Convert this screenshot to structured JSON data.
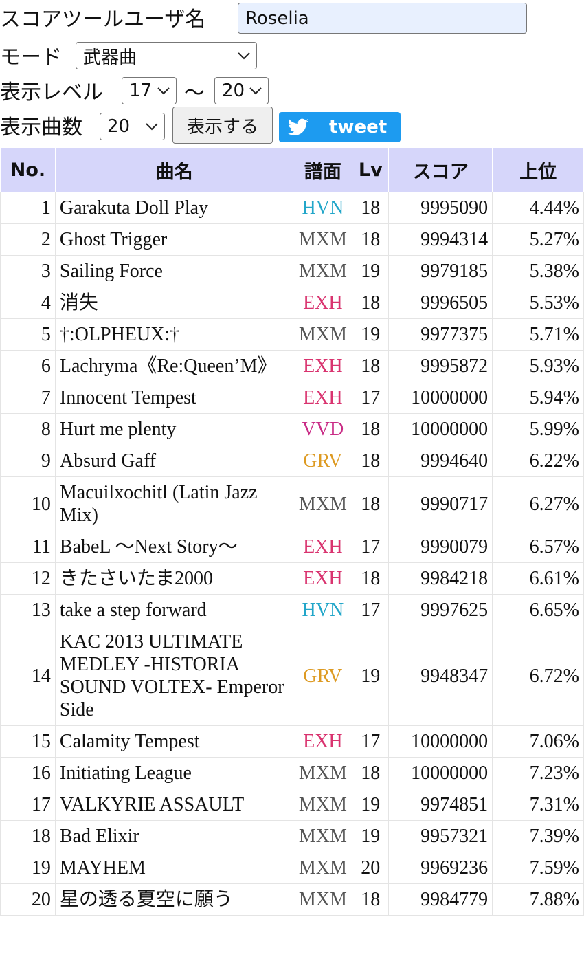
{
  "form": {
    "user_label": "スコアツールユーザ名",
    "user_value": "Roselia",
    "mode_label": "モード",
    "mode_value": "武器曲",
    "level_label": "表示レベル",
    "level_from": "17",
    "level_sep": "〜",
    "level_to": "20",
    "count_label": "表示曲数",
    "count_value": "20",
    "submit": "表示する",
    "tweet": "tweet"
  },
  "table": {
    "header": [
      "No.",
      "曲名",
      "譜面",
      "Lv",
      "スコア",
      "上位"
    ],
    "chart_colors": {
      "HVN": "#22a6c9",
      "MXM": "#555555",
      "EXH": "#d9336f",
      "VVD": "#c92c86",
      "GRV": "#dd9a22"
    },
    "rows": [
      [
        1,
        "Garakuta Doll Play",
        "HVN",
        18,
        9995090,
        "4.44%"
      ],
      [
        2,
        "Ghost Trigger",
        "MXM",
        18,
        9994314,
        "5.27%"
      ],
      [
        3,
        "Sailing Force",
        "MXM",
        19,
        9979185,
        "5.38%"
      ],
      [
        4,
        "消失",
        "EXH",
        18,
        9996505,
        "5.53%"
      ],
      [
        5,
        "†:OLPHEUX:†",
        "MXM",
        19,
        9977375,
        "5.71%"
      ],
      [
        6,
        "Lachryma《Re:Queen’M》",
        "EXH",
        18,
        9995872,
        "5.93%"
      ],
      [
        7,
        "Innocent Tempest",
        "EXH",
        17,
        10000000,
        "5.94%"
      ],
      [
        8,
        "Hurt me plenty",
        "VVD",
        18,
        10000000,
        "5.99%"
      ],
      [
        9,
        "Absurd Gaff",
        "GRV",
        18,
        9994640,
        "6.22%"
      ],
      [
        10,
        "Macuilxochitl (Latin Jazz Mix)",
        "MXM",
        18,
        9990717,
        "6.27%"
      ],
      [
        11,
        "BabeL ～Next Story～",
        "EXH",
        17,
        9990079,
        "6.57%"
      ],
      [
        12,
        "きたさいたま2000",
        "EXH",
        18,
        9984218,
        "6.61%"
      ],
      [
        13,
        "take a step forward",
        "HVN",
        17,
        9997625,
        "6.65%"
      ],
      [
        14,
        "KAC 2013 ULTIMATE MEDLEY -HISTORIA SOUND VOLTEX- Emperor Side",
        "GRV",
        19,
        9948347,
        "6.72%"
      ],
      [
        15,
        "Calamity Tempest",
        "EXH",
        17,
        10000000,
        "7.06%"
      ],
      [
        16,
        "Initiating League",
        "MXM",
        18,
        10000000,
        "7.23%"
      ],
      [
        17,
        "VALKYRIE ASSAULT",
        "MXM",
        19,
        9974851,
        "7.31%"
      ],
      [
        18,
        "Bad Elixir",
        "MXM",
        19,
        9957321,
        "7.39%"
      ],
      [
        19,
        "MAYHEM",
        "MXM",
        20,
        9969236,
        "7.59%"
      ],
      [
        20,
        "星の透る夏空に願う",
        "MXM",
        18,
        9984779,
        "7.88%"
      ]
    ]
  }
}
